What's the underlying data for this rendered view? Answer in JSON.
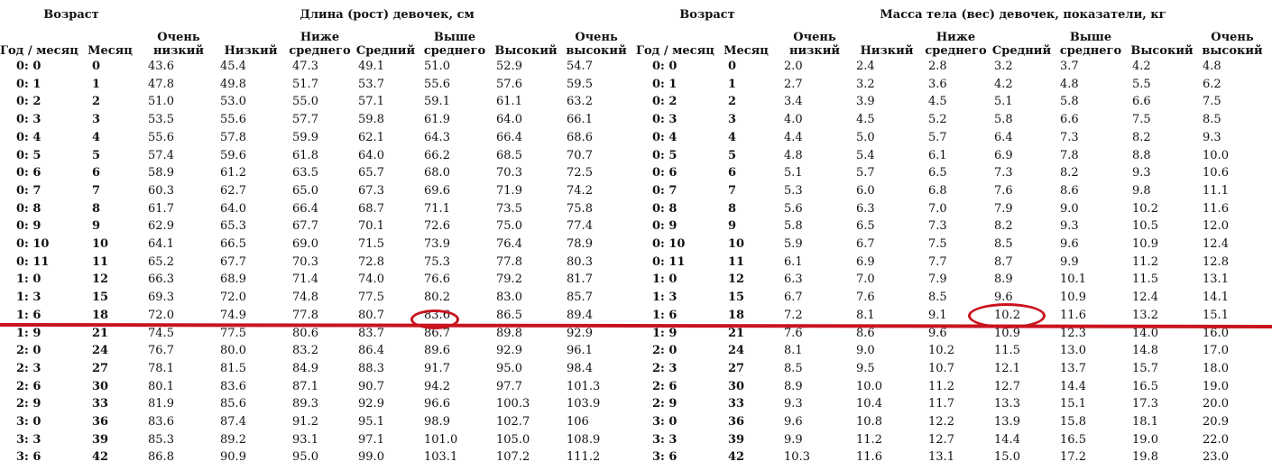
{
  "length_table": {
    "age_group_label": "Возраст",
    "measure_group_label": "Длина (рост) девочек, см",
    "columns": [
      {
        "line1": "",
        "line2": "Год / месяц"
      },
      {
        "line1": "",
        "line2": "Месяц"
      },
      {
        "line1": "Очень",
        "line2": "низкий"
      },
      {
        "line1": "",
        "line2": "Низкий"
      },
      {
        "line1": "Ниже",
        "line2": "среднего"
      },
      {
        "line1": "",
        "line2": "Средний"
      },
      {
        "line1": "Выше",
        "line2": "среднего"
      },
      {
        "line1": "",
        "line2": "Высокий"
      },
      {
        "line1": "Очень",
        "line2": "высокий"
      }
    ],
    "rows": [
      [
        "0: 0",
        "0",
        "43.6",
        "45.4",
        "47.3",
        "49.1",
        "51.0",
        "52.9",
        "54.7"
      ],
      [
        "0: 1",
        "1",
        "47.8",
        "49.8",
        "51.7",
        "53.7",
        "55.6",
        "57.6",
        "59.5"
      ],
      [
        "0: 2",
        "2",
        "51.0",
        "53.0",
        "55.0",
        "57.1",
        "59.1",
        "61.1",
        "63.2"
      ],
      [
        "0: 3",
        "3",
        "53.5",
        "55.6",
        "57.7",
        "59.8",
        "61.9",
        "64.0",
        "66.1"
      ],
      [
        "0: 4",
        "4",
        "55.6",
        "57.8",
        "59.9",
        "62.1",
        "64.3",
        "66.4",
        "68.6"
      ],
      [
        "0: 5",
        "5",
        "57.4",
        "59.6",
        "61.8",
        "64.0",
        "66.2",
        "68.5",
        "70.7"
      ],
      [
        "0: 6",
        "6",
        "58.9",
        "61.2",
        "63.5",
        "65.7",
        "68.0",
        "70.3",
        "72.5"
      ],
      [
        "0: 7",
        "7",
        "60.3",
        "62.7",
        "65.0",
        "67.3",
        "69.6",
        "71.9",
        "74.2"
      ],
      [
        "0: 8",
        "8",
        "61.7",
        "64.0",
        "66.4",
        "68.7",
        "71.1",
        "73.5",
        "75.8"
      ],
      [
        "0: 9",
        "9",
        "62.9",
        "65.3",
        "67.7",
        "70.1",
        "72.6",
        "75.0",
        "77.4"
      ],
      [
        "0: 10",
        "10",
        "64.1",
        "66.5",
        "69.0",
        "71.5",
        "73.9",
        "76.4",
        "78.9"
      ],
      [
        "0: 11",
        "11",
        "65.2",
        "67.7",
        "70.3",
        "72.8",
        "75.3",
        "77.8",
        "80.3"
      ],
      [
        "1: 0",
        "12",
        "66.3",
        "68.9",
        "71.4",
        "74.0",
        "76.6",
        "79.2",
        "81.7"
      ],
      [
        "1: 3",
        "15",
        "69.3",
        "72.0",
        "74.8",
        "77.5",
        "80.2",
        "83.0",
        "85.7"
      ],
      [
        "1: 6",
        "18",
        "72.0",
        "74.9",
        "77.8",
        "80.7",
        "83.6",
        "86.5",
        "89.4"
      ],
      [
        "1: 9",
        "21",
        "74.5",
        "77.5",
        "80.6",
        "83.7",
        "86.7",
        "89.8",
        "92.9"
      ],
      [
        "2: 0",
        "24",
        "76.7",
        "80.0",
        "83.2",
        "86.4",
        "89.6",
        "92.9",
        "96.1"
      ],
      [
        "2: 3",
        "27",
        "78.1",
        "81.5",
        "84.9",
        "88.3",
        "91.7",
        "95.0",
        "98.4"
      ],
      [
        "2: 6",
        "30",
        "80.1",
        "83.6",
        "87.1",
        "90.7",
        "94.2",
        "97.7",
        "101.3"
      ],
      [
        "2: 9",
        "33",
        "81.9",
        "85.6",
        "89.3",
        "92.9",
        "96.6",
        "100.3",
        "103.9"
      ],
      [
        "3: 0",
        "36",
        "83.6",
        "87.4",
        "91.2",
        "95.1",
        "98.9",
        "102.7",
        "106"
      ],
      [
        "3: 3",
        "39",
        "85.3",
        "89.2",
        "93.1",
        "97.1",
        "101.0",
        "105.0",
        "108.9"
      ],
      [
        "3: 6",
        "42",
        "86.8",
        "90.9",
        "95.0",
        "99.0",
        "103.1",
        "107.2",
        "111.2"
      ]
    ]
  },
  "weight_table": {
    "age_group_label": "Возраст",
    "measure_group_label": "Масса тела (вес) девочек, показатели, кг",
    "columns": [
      {
        "line1": "",
        "line2": "Год / месяц"
      },
      {
        "line1": "",
        "line2": "Месяц"
      },
      {
        "line1": "Очень",
        "line2": "низкий"
      },
      {
        "line1": "",
        "line2": "Низкий"
      },
      {
        "line1": "Ниже",
        "line2": "среднего"
      },
      {
        "line1": "",
        "line2": "Средний"
      },
      {
        "line1": "Выше",
        "line2": "среднего"
      },
      {
        "line1": "",
        "line2": "Высокий"
      },
      {
        "line1": "Очень",
        "line2": "высокий"
      }
    ],
    "rows": [
      [
        "0: 0",
        "0",
        "2.0",
        "2.4",
        "2.8",
        "3.2",
        "3.7",
        "4.2",
        "4.8"
      ],
      [
        "0: 1",
        "1",
        "2.7",
        "3.2",
        "3.6",
        "4.2",
        "4.8",
        "5.5",
        "6.2"
      ],
      [
        "0: 2",
        "2",
        "3.4",
        "3.9",
        "4.5",
        "5.1",
        "5.8",
        "6.6",
        "7.5"
      ],
      [
        "0: 3",
        "3",
        "4.0",
        "4.5",
        "5.2",
        "5.8",
        "6.6",
        "7.5",
        "8.5"
      ],
      [
        "0: 4",
        "4",
        "4.4",
        "5.0",
        "5.7",
        "6.4",
        "7.3",
        "8.2",
        "9.3"
      ],
      [
        "0: 5",
        "5",
        "4.8",
        "5.4",
        "6.1",
        "6.9",
        "7.8",
        "8.8",
        "10.0"
      ],
      [
        "0: 6",
        "6",
        "5.1",
        "5.7",
        "6.5",
        "7.3",
        "8.2",
        "9.3",
        "10.6"
      ],
      [
        "0: 7",
        "7",
        "5.3",
        "6.0",
        "6.8",
        "7.6",
        "8.6",
        "9.8",
        "11.1"
      ],
      [
        "0: 8",
        "8",
        "5.6",
        "6.3",
        "7.0",
        "7.9",
        "9.0",
        "10.2",
        "11.6"
      ],
      [
        "0: 9",
        "9",
        "5.8",
        "6.5",
        "7.3",
        "8.2",
        "9.3",
        "10.5",
        "12.0"
      ],
      [
        "0: 10",
        "10",
        "5.9",
        "6.7",
        "7.5",
        "8.5",
        "9.6",
        "10.9",
        "12.4"
      ],
      [
        "0: 11",
        "11",
        "6.1",
        "6.9",
        "7.7",
        "8.7",
        "9.9",
        "11.2",
        "12.8"
      ],
      [
        "1: 0",
        "12",
        "6.3",
        "7.0",
        "7.9",
        "8.9",
        "10.1",
        "11.5",
        "13.1"
      ],
      [
        "1: 3",
        "15",
        "6.7",
        "7.6",
        "8.5",
        "9.6",
        "10.9",
        "12.4",
        "14.1"
      ],
      [
        "1: 6",
        "18",
        "7.2",
        "8.1",
        "9.1",
        "10.2",
        "11.6",
        "13.2",
        "15.1"
      ],
      [
        "1: 9",
        "21",
        "7.6",
        "8.6",
        "9.6",
        "10.9",
        "12.3",
        "14.0",
        "16.0"
      ],
      [
        "2: 0",
        "24",
        "8.1",
        "9.0",
        "10.2",
        "11.5",
        "13.0",
        "14.8",
        "17.0"
      ],
      [
        "2: 3",
        "27",
        "8.5",
        "9.5",
        "10.7",
        "12.1",
        "13.7",
        "15.7",
        "18.0"
      ],
      [
        "2: 6",
        "30",
        "8.9",
        "10.0",
        "11.2",
        "12.7",
        "14.4",
        "16.5",
        "19.0"
      ],
      [
        "2: 9",
        "33",
        "9.3",
        "10.4",
        "11.7",
        "13.3",
        "15.1",
        "17.3",
        "20.0"
      ],
      [
        "3: 0",
        "36",
        "9.6",
        "10.8",
        "12.2",
        "13.9",
        "15.8",
        "18.1",
        "20.9"
      ],
      [
        "3: 3",
        "39",
        "9.9",
        "11.2",
        "12.7",
        "14.4",
        "16.5",
        "19.0",
        "22.0"
      ],
      [
        "3: 6",
        "42",
        "10.3",
        "11.6",
        "13.1",
        "15.0",
        "17.2",
        "19.8",
        "23.0"
      ]
    ]
  },
  "annotations": {
    "highlight_color": "#c9141f",
    "underlined_row_age": "1: 6",
    "circled_length_value": "83.6",
    "circled_weight_value": "10.2"
  }
}
